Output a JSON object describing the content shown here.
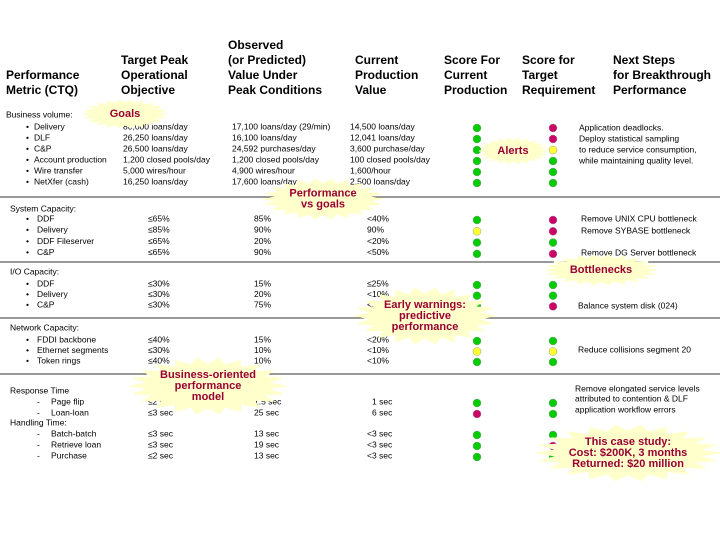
{
  "headers": [
    [
      "Performance",
      "Metric (CTQ)"
    ],
    [
      "Target Peak",
      "Operational",
      "Objective"
    ],
    [
      "Observed",
      "(or Predicted)",
      "Value Under",
      "Peak Conditions"
    ],
    [
      "Current",
      "Production",
      "Value"
    ],
    [
      "Score For",
      "Current",
      "Production"
    ],
    [
      "Score for",
      "Target",
      "Requirement"
    ],
    [
      "Next Steps",
      "for Breakthrough",
      "Performance"
    ]
  ],
  "status_colors": {
    "green": "#00cc00",
    "red": "#cc0066",
    "yellow": "#ffff33"
  },
  "sections": [
    {
      "title": "Business volume:",
      "rows": [
        {
          "metric": "Delivery",
          "target": "80,000 loans/day",
          "observed": "17,100 loans/day (29/min)",
          "current": "14,500 loans/day",
          "score_current": "green",
          "score_target": "red"
        },
        {
          "metric": "DLF",
          "target": "26,250 loans/day",
          "observed": "16,100 loans/day",
          "current": "12,041 loans/day",
          "score_current": "green",
          "score_target": "red"
        },
        {
          "metric": "C&P",
          "target": "26,500 loans/day",
          "observed": "24,592 purchases/day",
          "current": "3,600 purchase/day",
          "score_current": "green",
          "score_target": "yellow"
        },
        {
          "metric": "Account production",
          "target": "1,200 closed pools/day",
          "observed": "1,200 closed pools/day",
          "current": "100 closed pools/day",
          "score_current": "green",
          "score_target": "green"
        },
        {
          "metric": "Wire transfer",
          "target": "5,000 wires/hour",
          "observed": "4,900 wires/hour",
          "current": "1,600/hour",
          "score_current": "green",
          "score_target": "green"
        },
        {
          "metric": "NetXfer (cash)",
          "target": "16,250 loans/day",
          "observed": "17,600 loans/day",
          "current": "2,500 loans/day",
          "score_current": "green",
          "score_target": "green"
        }
      ],
      "next_steps": [
        "Application deadlocks.",
        "Deploy statistical sampling",
        "to reduce service consumption,",
        "while maintaining quality level."
      ]
    },
    {
      "title": "System Capacity:",
      "rows": [
        {
          "metric": "DDF",
          "target": "≤65%",
          "observed": "85%",
          "current": "<40%",
          "score_current": "green",
          "score_target": "red"
        },
        {
          "metric": "Delivery",
          "target": "≤85%",
          "observed": "90%",
          "current": "90%",
          "score_current": "yellow",
          "score_target": "red"
        },
        {
          "metric": "DDF Fileserver",
          "target": "≤65%",
          "observed": "20%",
          "current": "<20%",
          "score_current": "green",
          "score_target": "green"
        },
        {
          "metric": "C&P",
          "target": "≤65%",
          "observed": "90%",
          "current": "<50%",
          "score_current": "green",
          "score_target": "red"
        }
      ],
      "next_steps": [
        "Remove UNIX CPU bottleneck",
        "Remove SYBASE bottleneck",
        "Remove DG Server bottleneck"
      ]
    },
    {
      "title": "I/O Capacity:",
      "rows": [
        {
          "metric": "DDF",
          "target": "≤30%",
          "observed": "15%",
          "current": "≤25%",
          "score_current": "green",
          "score_target": "green"
        },
        {
          "metric": "Delivery",
          "target": "≤30%",
          "observed": "20%",
          "current": "<10%",
          "score_current": "green",
          "score_target": "green"
        },
        {
          "metric": "C&P",
          "target": "≤30%",
          "observed": "75%",
          "current": "<30%",
          "score_current": "green",
          "score_target": "red"
        }
      ],
      "next_steps": [
        "Balance system disk (024)"
      ]
    },
    {
      "title": "Network Capacity:",
      "rows": [
        {
          "metric": "FDDI backbone",
          "target": "≤40%",
          "observed": "15%",
          "current": "<20%",
          "score_current": "green",
          "score_target": "green"
        },
        {
          "metric": "Ethernet segments",
          "target": "≤30%",
          "observed": "10%",
          "current": "<10%",
          "score_current": "yellow",
          "score_target": "yellow"
        },
        {
          "metric": "Token rings",
          "target": "≤40%",
          "observed": "10%",
          "current": "<10%",
          "score_current": "green",
          "score_target": "green"
        }
      ],
      "next_steps": [
        "Reduce collisions segment 20"
      ]
    },
    {
      "title": "Response Time",
      "rows": [
        {
          "metric": "Page flip",
          "target": "≤2 sec",
          "observed": "1.5 sec",
          "current": "1 sec",
          "score_current": "green",
          "score_target": "green"
        },
        {
          "metric": "Loan-loan",
          "target": "≤3 sec",
          "observed": "25 sec",
          "current": "6 sec",
          "score_current": "red",
          "score_target": "green"
        }
      ],
      "next_steps": [
        "Remove elongated service levels",
        "attributed to contention & DLF",
        "application workflow errors"
      ]
    },
    {
      "title": "Handling Time:",
      "rows": [
        {
          "metric": "Batch-batch",
          "target": "≤3 sec",
          "observed": "13 sec",
          "current": "<3 sec",
          "score_current": "green",
          "score_target": "green"
        },
        {
          "metric": "Retrieve loan",
          "target": "≤3 sec",
          "observed": "19 sec",
          "current": "<3 sec",
          "score_current": "green",
          "score_target": "red"
        },
        {
          "metric": "Purchase",
          "target": "≤2 sec",
          "observed": "13 sec",
          "current": "<3 sec",
          "score_current": "green",
          "score_target": "green"
        }
      ],
      "next_steps": []
    }
  ],
  "callouts": [
    [
      "Goals"
    ],
    [
      "Performance",
      "vs goals"
    ],
    [
      "Alerts"
    ],
    [
      "Bottlenecks"
    ],
    [
      "Early warnings:",
      "predictive",
      "performance"
    ],
    [
      "Business-oriented",
      "performance",
      "model"
    ],
    [
      "This case study:",
      "Cost: $200K, 3 months",
      "Returned: $20 million"
    ]
  ]
}
